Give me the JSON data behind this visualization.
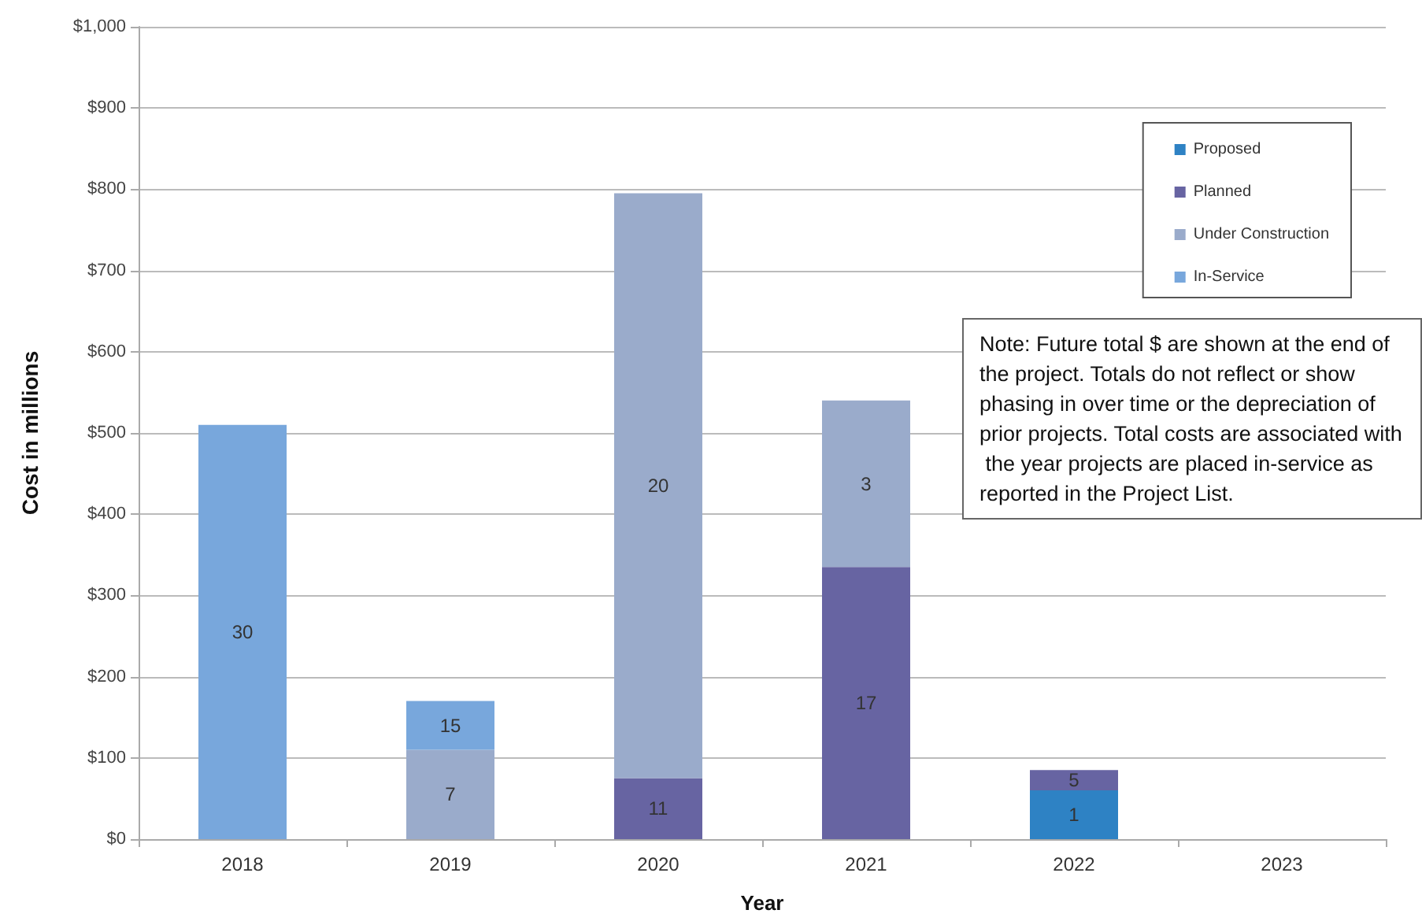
{
  "chart_data": {
    "type": "bar",
    "stacked": true,
    "xlabel": "Year",
    "ylabel": "Cost in millions",
    "categories": [
      "2018",
      "2019",
      "2020",
      "2021",
      "2022",
      "2023"
    ],
    "series": [
      {
        "name": "Proposed",
        "color": "#2e82c4",
        "values": [
          null,
          null,
          null,
          null,
          60,
          null
        ]
      },
      {
        "name": "Planned",
        "color": "#6764a2",
        "values": [
          null,
          null,
          75,
          335,
          25,
          null
        ]
      },
      {
        "name": "Under Construction",
        "color": "#9aabcb",
        "values": [
          null,
          110,
          720,
          205,
          null,
          null
        ]
      },
      {
        "name": "In-Service",
        "color": "#78a7dc",
        "values": [
          510,
          60,
          null,
          null,
          null,
          null
        ]
      }
    ],
    "ylim": [
      0,
      1000
    ],
    "yticks": [
      {
        "value": 0,
        "label": "$0"
      },
      {
        "value": 100,
        "label": "$100"
      },
      {
        "value": 200,
        "label": "$200"
      },
      {
        "value": 300,
        "label": "$300"
      },
      {
        "value": 400,
        "label": "$400"
      },
      {
        "value": 500,
        "label": "$500"
      },
      {
        "value": 600,
        "label": "$600"
      },
      {
        "value": 700,
        "label": "$700"
      },
      {
        "value": 800,
        "label": "$800"
      },
      {
        "value": 900,
        "label": "$900"
      },
      {
        "value": 1000,
        "label": "$1,000"
      }
    ],
    "grid": "y",
    "legend": "top right",
    "annotations": [
      "30",
      "7",
      "15",
      "11",
      "20",
      "17",
      "3",
      "1",
      "5",
      "Note: Future total $ are shown at the end of the project. Totals do not reflect or show phasing in over time or the depreciation of prior projects. Total costs are associated with the year projects are placed in-service as reported in the Project List."
    ]
  }
}
